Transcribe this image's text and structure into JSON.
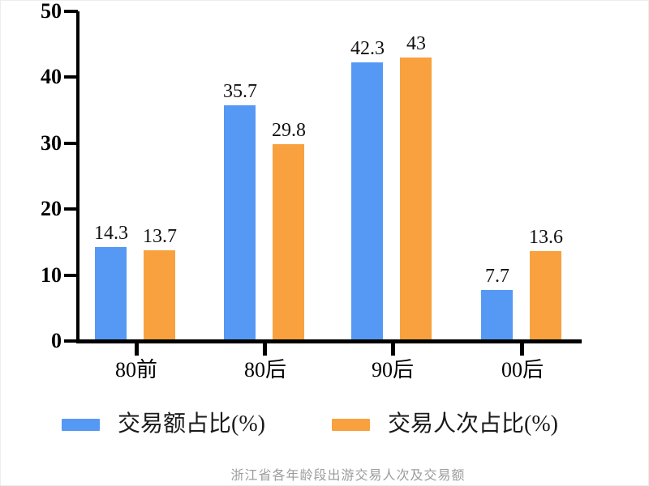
{
  "chart_data": {
    "type": "bar",
    "title": "浙江省各年龄段出游交易人次及交易额",
    "categories": [
      "80前",
      "80后",
      "90后",
      "00后"
    ],
    "series": [
      {
        "name": "交易额占比(%)",
        "color": "#5599F5",
        "values": [
          14.3,
          35.7,
          42.3,
          7.7
        ]
      },
      {
        "name": "交易人次占比(%)",
        "color": "#F9A13F",
        "values": [
          13.7,
          29.8,
          43,
          13.6
        ]
      }
    ],
    "ylim": [
      0,
      50
    ],
    "yticks": [
      0,
      10,
      20,
      30,
      40,
      50
    ],
    "xlabel": "",
    "ylabel": "",
    "grid": false,
    "value_labels": true,
    "legend_position": "bottom",
    "axis_color": "#000000",
    "value_label_color": "#111111",
    "caption_color": "#9c9c9c"
  }
}
